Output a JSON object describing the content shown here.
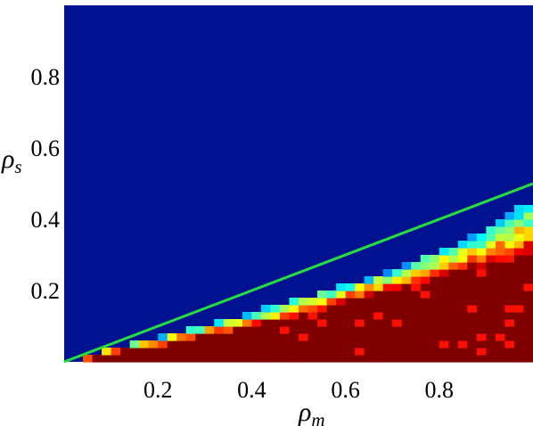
{
  "chart_data": {
    "type": "heatmap",
    "title": "",
    "xlabel": {
      "symbol": "ρ",
      "subscript": "m"
    },
    "ylabel": {
      "symbol": "ρ",
      "subscript": "s"
    },
    "xlim": [
      0,
      1
    ],
    "ylim": [
      0,
      1
    ],
    "x_ticks": [
      0.2,
      0.4,
      0.6,
      0.8
    ],
    "y_ticks": [
      0.2,
      0.4,
      0.6,
      0.8
    ],
    "x_tick_labels": [
      "0.2",
      "0.4",
      "0.6",
      "0.8"
    ],
    "y_tick_labels": [
      "0.2",
      "0.4",
      "0.6",
      "0.8"
    ],
    "grid": false,
    "colormap": "jet",
    "background_value": 0,
    "grid_resolution": [
      50,
      50
    ],
    "boundary_line": {
      "x": [
        0,
        1
      ],
      "y": [
        0,
        0.5
      ],
      "color": "#22e040"
    },
    "phase_transition_profile": {
      "rho_m": [
        0.02,
        0.1,
        0.2,
        0.3,
        0.4,
        0.5,
        0.6,
        0.7,
        0.8,
        0.9,
        0.98
      ],
      "lower_rho_s": [
        0.0,
        0.025,
        0.045,
        0.07,
        0.1,
        0.135,
        0.17,
        0.2,
        0.24,
        0.27,
        0.3
      ],
      "upper_rho_s": [
        0.005,
        0.04,
        0.07,
        0.105,
        0.14,
        0.175,
        0.215,
        0.26,
        0.31,
        0.37,
        0.44
      ]
    },
    "colors": {
      "background": "#00128f",
      "line": "#22e040"
    }
  }
}
